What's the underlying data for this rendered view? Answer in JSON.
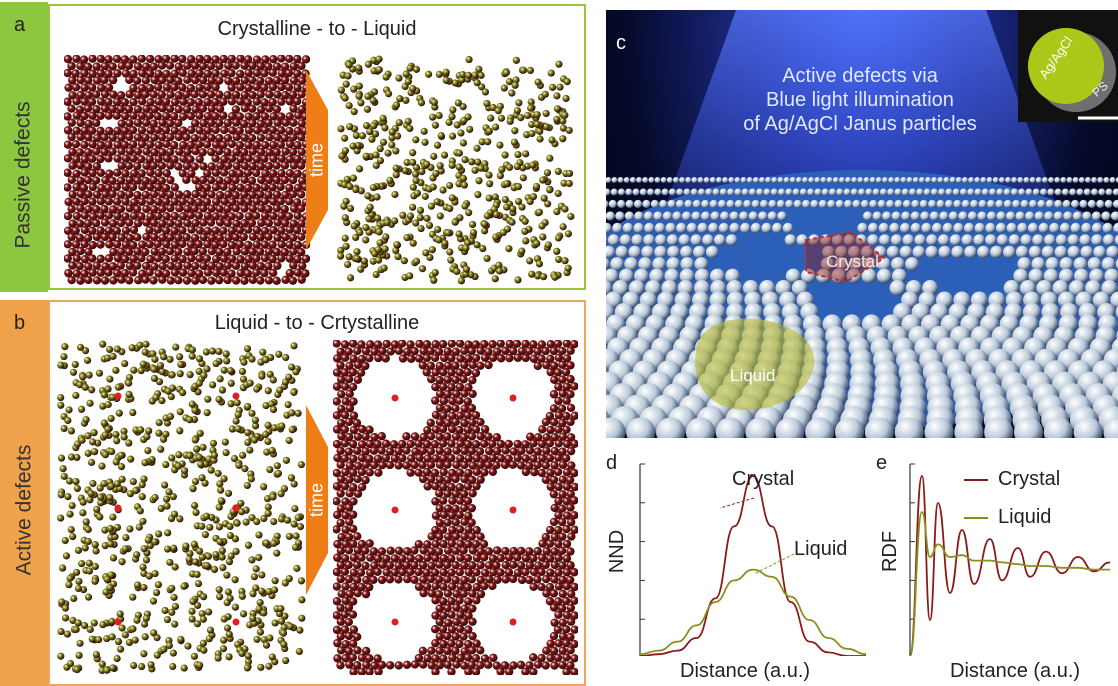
{
  "colors": {
    "crystal": "#8b1a1a",
    "liquid": "#8a8f1e",
    "panel_a_border": "#9cc43a",
    "panel_b_border": "#f0a55a",
    "side_a": "#8dc63f",
    "side_b": "#f0a24a",
    "arrow": "#ef7d16",
    "defect": "#e02020"
  },
  "panel_a": {
    "letter": "a",
    "title": "Crystalline - to - Liquid",
    "side_label": "Passive defects",
    "arrow_label": "time"
  },
  "panel_b": {
    "letter": "b",
    "title": "Liquid - to - Crtystalline",
    "side_label": "Active defects",
    "arrow_label": "time"
  },
  "panel_c": {
    "letter": "c",
    "caption_lines": [
      "Active defects via",
      "Blue light illumination",
      "of  Ag/AgCl Janus particles"
    ],
    "inset_labels": [
      "Ag/AgCl",
      "PS"
    ],
    "crystal_label": "Crystal",
    "liquid_label": "Liquid"
  },
  "panel_d": {
    "letter": "d",
    "ylabel": "NND",
    "xlabel": "Distance (a.u.)",
    "crystal_label": "Crystal",
    "liquid_label": "Liquid"
  },
  "panel_e": {
    "letter": "e",
    "ylabel": "RDF",
    "xlabel": "Distance (a.u.)",
    "legend": [
      "Crystal",
      "Liquid"
    ]
  },
  "chart_data": [
    {
      "type": "line",
      "panel": "d",
      "xlabel": "Distance (a.u.)",
      "ylabel": "NND",
      "series": [
        {
          "name": "Crystal",
          "x": [
            0,
            1,
            2,
            3,
            4,
            5,
            6,
            7,
            8,
            9,
            10,
            11,
            12
          ],
          "values": [
            0,
            0.01,
            0.03,
            0.1,
            0.32,
            0.72,
            1.0,
            0.72,
            0.3,
            0.08,
            0.02,
            0.0,
            0.0
          ]
        },
        {
          "name": "Liquid",
          "x": [
            0,
            1,
            2,
            3,
            4,
            5,
            6,
            7,
            8,
            9,
            10,
            11,
            12
          ],
          "values": [
            0.01,
            0.03,
            0.08,
            0.17,
            0.3,
            0.42,
            0.48,
            0.44,
            0.33,
            0.2,
            0.1,
            0.04,
            0.01
          ]
        }
      ]
    },
    {
      "type": "line",
      "panel": "e",
      "xlabel": "Distance (a.u.)",
      "ylabel": "RDF",
      "series": [
        {
          "name": "Crystal",
          "x": [
            0,
            0.3,
            0.5,
            0.7,
            1.0,
            1.3,
            1.6,
            2.0,
            2.3,
            2.7,
            3.0,
            3.4,
            3.8,
            4.2,
            4.6,
            5.0
          ],
          "values": [
            0,
            1.0,
            0.2,
            0.85,
            0.35,
            0.7,
            0.4,
            0.65,
            0.42,
            0.6,
            0.44,
            0.58,
            0.46,
            0.55,
            0.47,
            0.52
          ]
        },
        {
          "name": "Liquid",
          "x": [
            0,
            0.3,
            0.5,
            0.7,
            1.0,
            1.3,
            1.6,
            2.0,
            2.3,
            2.7,
            3.0,
            3.4,
            3.8,
            4.2,
            4.6,
            5.0
          ],
          "values": [
            0,
            0.8,
            0.55,
            0.62,
            0.55,
            0.56,
            0.53,
            0.53,
            0.52,
            0.51,
            0.5,
            0.5,
            0.49,
            0.49,
            0.48,
            0.48
          ]
        }
      ]
    }
  ]
}
